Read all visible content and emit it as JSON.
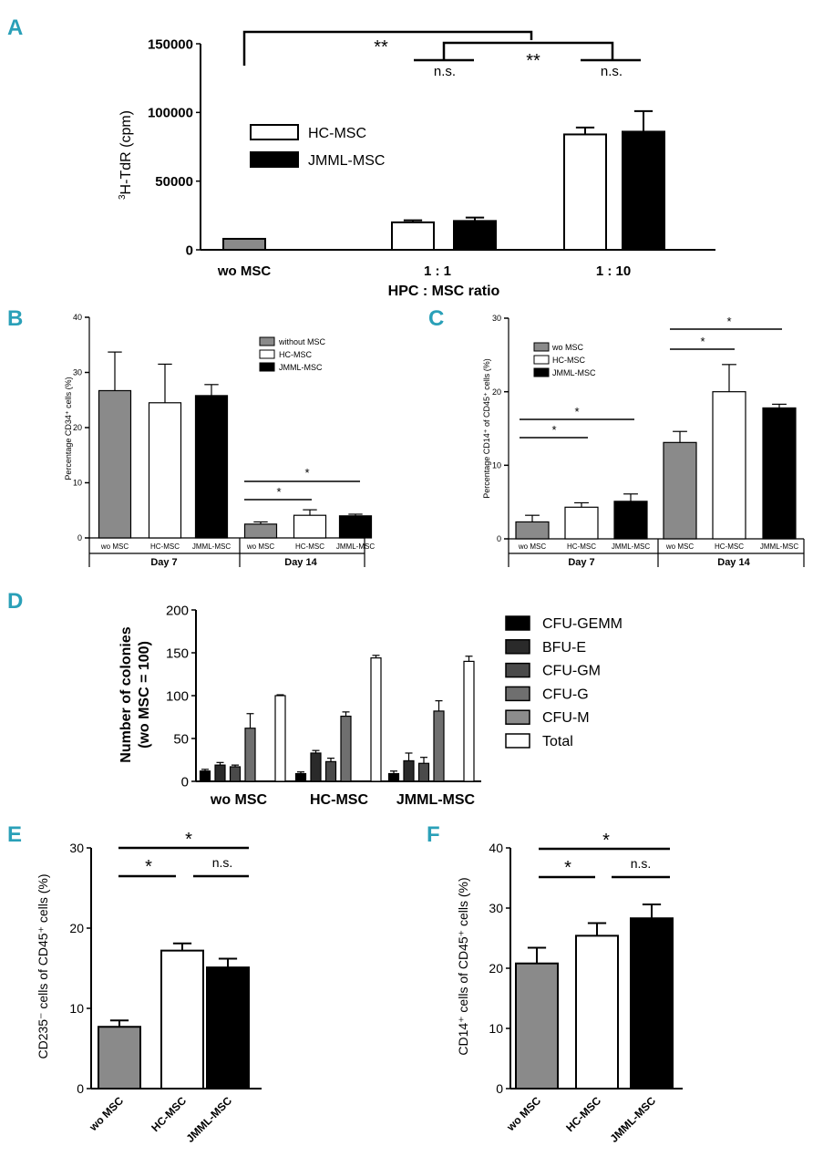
{
  "panel_labels": [
    "A",
    "B",
    "C",
    "D",
    "E",
    "F"
  ],
  "colors": {
    "label": "#2aa0b8",
    "gray": "#8a8a8a",
    "dark": "#3a3a3a",
    "white": "#ffffff",
    "black": "#000000"
  },
  "chart_data": [
    {
      "id": "A",
      "type": "bar",
      "ylabel_sup": "3",
      "ylabel_main": "H-TdR (cpm)",
      "xlabel": "HPC : MSC ratio",
      "categories": [
        "wo MSC",
        "1 : 1",
        "1 : 10"
      ],
      "ylim": [
        0,
        150000
      ],
      "yticks": [
        0,
        50000,
        100000,
        150000
      ],
      "ytick_labels": [
        "0",
        "50000",
        "100000",
        "150000"
      ],
      "legend": [
        "HC-MSC",
        "JMML-MSC"
      ],
      "bars": [
        {
          "category": "wo MSC",
          "series": "wo MSC",
          "value": 8000,
          "err": 0,
          "color": "gray"
        },
        {
          "category": "1 : 1",
          "series": "HC-MSC",
          "value": 20000,
          "err": 1500,
          "color": "white"
        },
        {
          "category": "1 : 1",
          "series": "JMML-MSC",
          "value": 21000,
          "err": 2500,
          "color": "black"
        },
        {
          "category": "1 : 10",
          "series": "HC-MSC",
          "value": 84000,
          "err": 5000,
          "color": "white"
        },
        {
          "category": "1 : 10",
          "series": "JMML-MSC",
          "value": 86000,
          "err": 15000,
          "color": "black"
        }
      ],
      "annotations": [
        "**",
        "n.s.",
        "**",
        "n.s."
      ]
    },
    {
      "id": "B",
      "type": "bar",
      "ylabel": "Percentage CD34⁺ cells (%)",
      "ylim": [
        0,
        40
      ],
      "yticks": [
        0,
        10,
        20,
        30,
        40
      ],
      "ytick_labels": [
        "0",
        "10",
        "20",
        "30",
        "40"
      ],
      "legend": [
        "without MSC",
        "HC-MSC",
        "JMML-MSC"
      ],
      "groups": [
        "Day 7",
        "Day 14"
      ],
      "bars": [
        {
          "label": "wo MSC",
          "group": "Day 7",
          "value": 26.7,
          "err": 7,
          "color": "gray"
        },
        {
          "label": "HC-MSC",
          "group": "Day 7",
          "value": 24.5,
          "err": 7,
          "color": "white"
        },
        {
          "label": "JMML-MSC",
          "group": "Day 7",
          "value": 25.8,
          "err": 2,
          "color": "black"
        },
        {
          "label": "wo MSC",
          "group": "Day 14",
          "value": 2.5,
          "err": 0.4,
          "color": "gray"
        },
        {
          "label": "HC-MSC",
          "group": "Day 14",
          "value": 4.1,
          "err": 1,
          "color": "white"
        },
        {
          "label": "JMML-MSC",
          "group": "Day 14",
          "value": 4.0,
          "err": 0.3,
          "color": "black"
        }
      ],
      "annotations": [
        "*",
        "*"
      ]
    },
    {
      "id": "C",
      "type": "bar",
      "ylabel": "Percentage CD14⁺ of CD45⁺ cells (%)",
      "ylim": [
        0,
        30
      ],
      "yticks": [
        0,
        10,
        20,
        30
      ],
      "ytick_labels": [
        "0",
        "10",
        "20",
        "30"
      ],
      "legend": [
        "wo MSC",
        "HC-MSC",
        "JMML-MSC"
      ],
      "groups": [
        "Day 7",
        "Day 14"
      ],
      "bars": [
        {
          "label": "wo MSC",
          "group": "Day 7",
          "value": 2.3,
          "err": 0.9,
          "color": "gray"
        },
        {
          "label": "HC-MSC",
          "group": "Day 7",
          "value": 4.3,
          "err": 0.6,
          "color": "white"
        },
        {
          "label": "JMML-MSC",
          "group": "Day 7",
          "value": 5.1,
          "err": 1.0,
          "color": "black"
        },
        {
          "label": "wo MSC",
          "group": "Day 14",
          "value": 13.1,
          "err": 1.5,
          "color": "gray"
        },
        {
          "label": "HC-MSC",
          "group": "Day 14",
          "value": 20.0,
          "err": 3.7,
          "color": "white"
        },
        {
          "label": "JMML-MSC",
          "group": "Day 14",
          "value": 17.8,
          "err": 0.5,
          "color": "black"
        }
      ],
      "annotations": [
        "*",
        "*",
        "*",
        "*"
      ]
    },
    {
      "id": "D",
      "type": "bar",
      "ylabel_line1": "Number of colonies",
      "ylabel_line2": "(wo MSC = 100)",
      "ylim": [
        0,
        200
      ],
      "yticks": [
        0,
        50,
        100,
        150,
        200
      ],
      "ytick_labels": [
        "0",
        "50",
        "100",
        "150",
        "200"
      ],
      "categories": [
        "wo MSC",
        "HC-MSC",
        "JMML-MSC"
      ],
      "series": [
        {
          "name": "CFU-GEMM",
          "color": "#000000",
          "values": [
            12,
            9,
            9
          ],
          "err": [
            2,
            2,
            3
          ]
        },
        {
          "name": "BFU-E",
          "color": "#2a2a2a",
          "values": [
            19,
            33,
            24
          ],
          "err": [
            3,
            3,
            9
          ]
        },
        {
          "name": "CFU-GM",
          "color": "#4a4a4a",
          "values": [
            17,
            23,
            21
          ],
          "err": [
            2,
            4,
            7
          ]
        },
        {
          "name": "CFU-G",
          "color": "#6f6f6f",
          "values": [
            62,
            76,
            82
          ],
          "err": [
            17,
            5,
            12
          ]
        },
        {
          "name": "CFU-M",
          "color": "#8c8c8c",
          "values": [
            null,
            null,
            null
          ],
          "err": [
            0,
            0,
            0
          ]
        },
        {
          "name": "Total",
          "color": "#ffffff",
          "values": [
            100,
            144,
            140
          ],
          "err": [
            1,
            3,
            6
          ]
        }
      ]
    },
    {
      "id": "E",
      "type": "bar",
      "ylabel": "CD235⁻ cells of CD45⁺ cells (%)",
      "ylim": [
        0,
        30
      ],
      "yticks": [
        0,
        10,
        20,
        30
      ],
      "ytick_labels": [
        "0",
        "10",
        "20",
        "30"
      ],
      "categories": [
        "wo MSC",
        "HC-MSC",
        "JMML-MSC"
      ],
      "values": [
        7.7,
        17.2,
        15.1
      ],
      "err": [
        0.8,
        0.9,
        1.1
      ],
      "colors": [
        "gray",
        "white",
        "black"
      ],
      "annotations": [
        "*",
        "*",
        "n.s."
      ]
    },
    {
      "id": "F",
      "type": "bar",
      "ylabel": "CD14⁺ cells of CD45⁺ cells (%)",
      "ylim": [
        0,
        40
      ],
      "yticks": [
        0,
        10,
        20,
        30,
        40
      ],
      "ytick_labels": [
        "0",
        "10",
        "20",
        "30",
        "40"
      ],
      "categories": [
        "wo MSC",
        "HC-MSC",
        "JMML-MSC"
      ],
      "values": [
        20.8,
        25.4,
        28.3
      ],
      "err": [
        2.6,
        2.1,
        2.3
      ],
      "colors": [
        "gray",
        "white",
        "black"
      ],
      "annotations": [
        "*",
        "*",
        "n.s."
      ]
    }
  ]
}
